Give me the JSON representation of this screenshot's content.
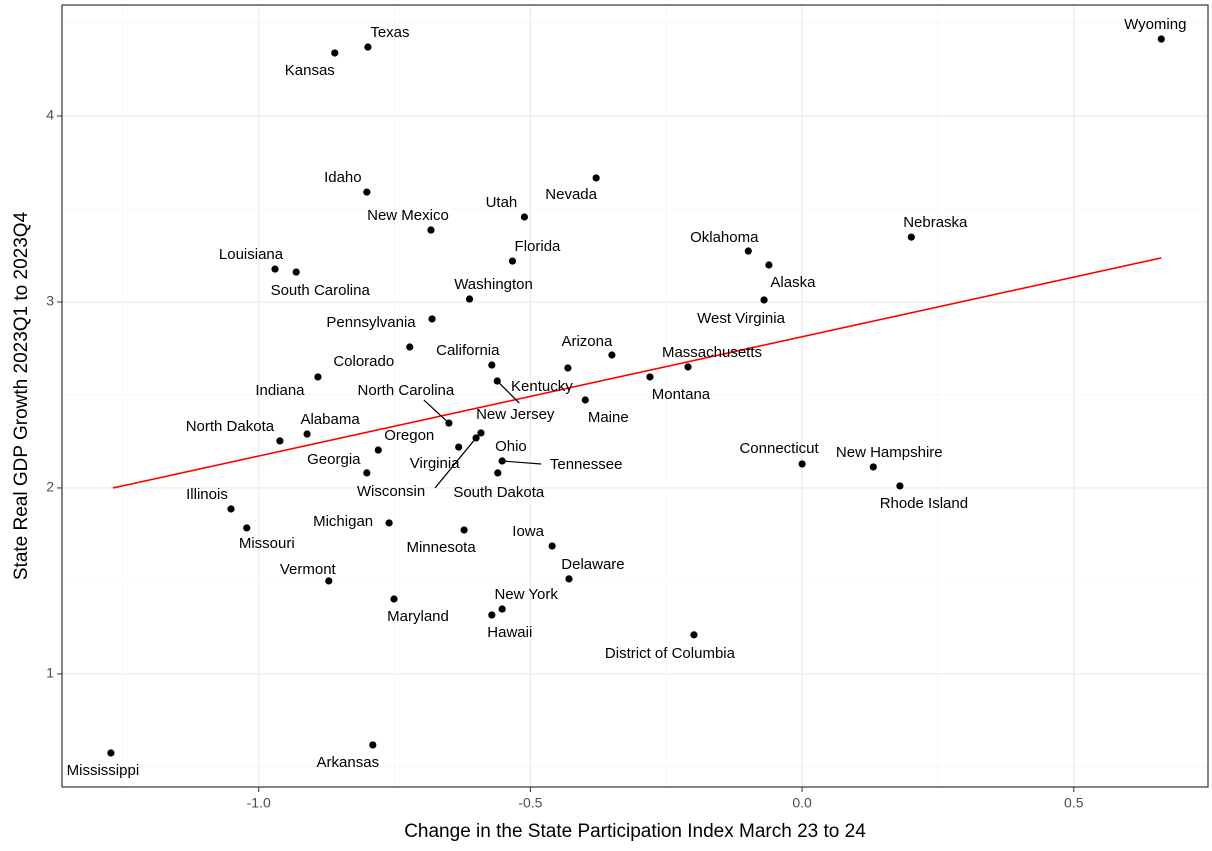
{
  "chart_data": {
    "type": "scatter",
    "x_label": "Change in the State Participation Index March 23 to 24",
    "y_label": "State Real GDP Growth 2023Q1 to 2023Q4",
    "labels": [
      "Wyoming",
      "Texas",
      "Kansas",
      "Nevada",
      "Idaho",
      "Utah",
      "New Mexico",
      "Nebraska",
      "Oklahoma",
      "Florida",
      "Alaska",
      "Louisiana",
      "South Carolina",
      "Washington",
      "West Virginia",
      "Pennsylvania",
      "Colorado",
      "California",
      "Arizona",
      "Kentucky",
      "New Jersey",
      "Massachusetts",
      "Montana",
      "Maine",
      "Indiana",
      "North Carolina",
      "Alabama",
      "North Dakota",
      "Oregon",
      "Virginia",
      "Ohio",
      "Wisconsin",
      "Tennessee",
      "Georgia",
      "South Dakota",
      "Connecticut",
      "New Hampshire",
      "Rhode Island",
      "Illinois",
      "Missouri",
      "Michigan",
      "Minnesota",
      "Iowa",
      "Delaware",
      "Vermont",
      "Maryland",
      "New York",
      "Hawaii",
      "District of Columbia",
      "Mississippi",
      "Arkansas"
    ],
    "x": [
      0.661,
      -0.799,
      -0.86,
      -0.379,
      -0.801,
      -0.511,
      -0.683,
      0.201,
      -0.099,
      -0.533,
      -0.061,
      -0.97,
      -0.931,
      -0.612,
      -0.07,
      -0.681,
      -0.722,
      -0.571,
      -0.35,
      -0.431,
      -0.561,
      -0.21,
      -0.28,
      -0.399,
      -0.891,
      -0.65,
      -0.911,
      -0.961,
      -0.78,
      -0.632,
      -0.591,
      -0.6,
      -0.552,
      -0.801,
      -0.56,
      0.0,
      0.131,
      0.18,
      -1.051,
      -1.022,
      -0.76,
      -0.622,
      -0.46,
      -0.429,
      -0.871,
      -0.751,
      -0.552,
      -0.571,
      -0.199,
      -1.272,
      -0.79
    ],
    "y": [
      4.414,
      4.371,
      4.339,
      3.667,
      3.591,
      3.457,
      3.387,
      3.349,
      3.274,
      3.22,
      3.199,
      3.177,
      3.161,
      3.016,
      3.011,
      2.909,
      2.758,
      2.661,
      2.715,
      2.645,
      2.575,
      2.651,
      2.597,
      2.473,
      2.597,
      2.349,
      2.29,
      2.253,
      2.204,
      2.22,
      2.296,
      2.269,
      2.145,
      2.081,
      2.081,
      2.129,
      2.113,
      2.011,
      1.887,
      1.785,
      1.812,
      1.774,
      1.688,
      1.511,
      1.5,
      1.403,
      1.349,
      1.317,
      1.21,
      0.575,
      0.618
    ],
    "color": "#000000",
    "trend": {
      "x": [
        -1.268,
        0.661
      ],
      "y": [
        2.0,
        3.237
      ],
      "color": "#ff0000"
    },
    "xlim": [
      -1.362,
      0.747
    ],
    "ylim": [
      0.392,
      4.597
    ],
    "xticks": [
      {
        "value": -1.0,
        "label": "-1.0"
      },
      -0.5,
      {
        "value": 0.0,
        "label": "0.0"
      },
      0.5
    ],
    "yticks": [
      1,
      2,
      3,
      4
    ],
    "x_minor_grid": [
      -1.25,
      -0.75,
      -0.25,
      0.25
    ],
    "y_minor_grid": [
      0.5,
      1.5,
      2.5,
      3.5,
      4.5
    ],
    "grid": true
  }
}
